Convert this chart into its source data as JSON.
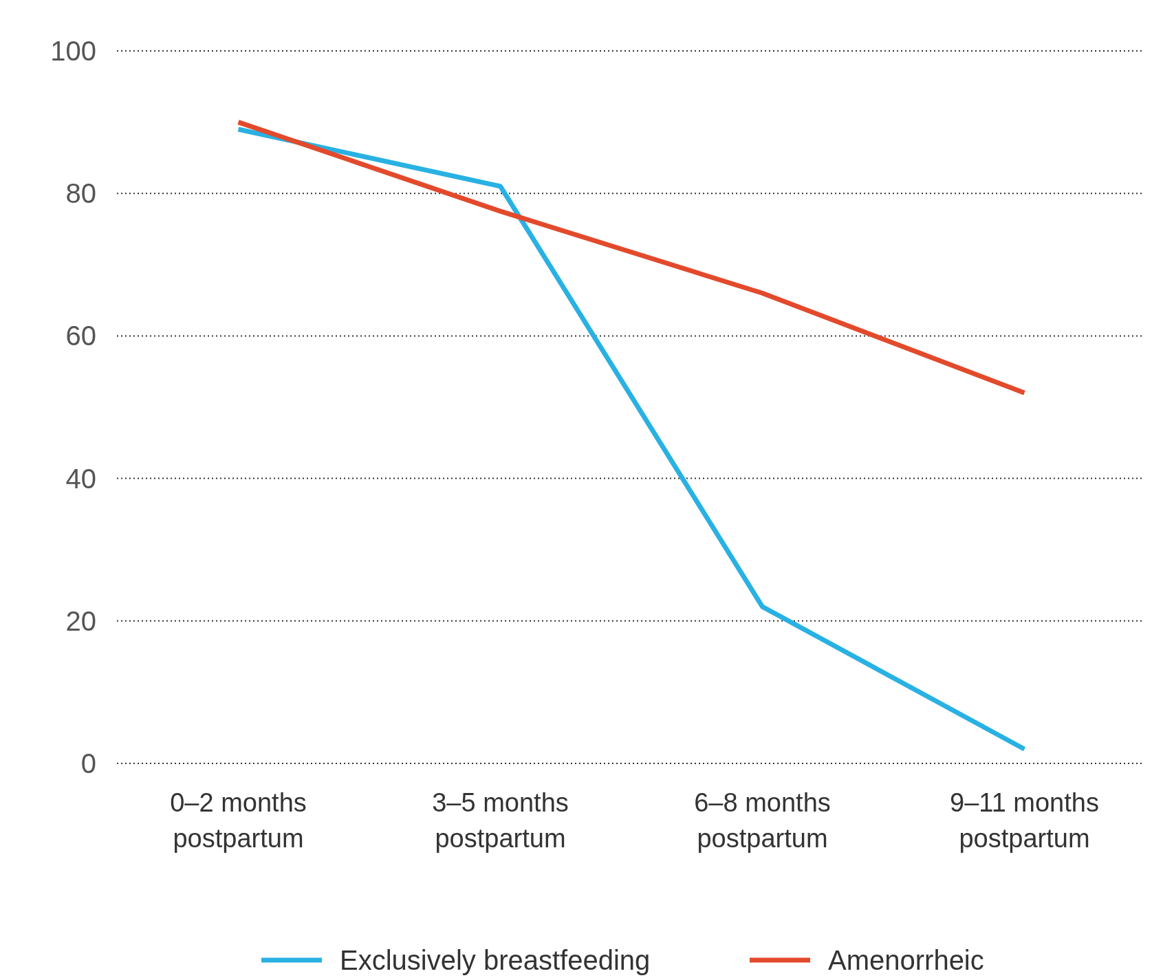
{
  "chart_data": {
    "type": "line",
    "categories": [
      "0–2 months postpartum",
      "3–5 months postpartum",
      "6–8 months postpartum",
      "9–11 months postpartum"
    ],
    "series": [
      {
        "name": "Exclusively breastfeeding",
        "color": "#29b1e3",
        "values": [
          89,
          81,
          22,
          2
        ]
      },
      {
        "name": "Amenorrheic",
        "color": "#e34a2c",
        "values": [
          90,
          77.5,
          66,
          52
        ]
      }
    ],
    "ylim": [
      0,
      100
    ],
    "yticks": [
      0,
      20,
      40,
      60,
      80,
      100
    ],
    "grid": "y",
    "legend": "bottom",
    "marker": "none",
    "line_style": "solid"
  }
}
